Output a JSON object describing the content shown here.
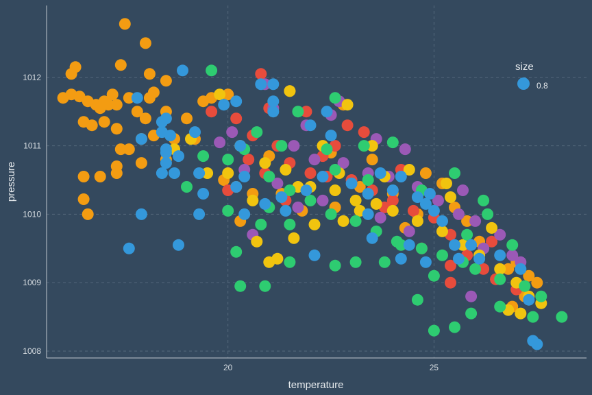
{
  "chart_data": {
    "type": "scatter",
    "title": "",
    "xlabel": "temperature",
    "ylabel": "pressure",
    "xlim": [
      15.6,
      28.7
    ],
    "ylim": [
      1007.9,
      1013.05
    ],
    "x_ticks": [
      20,
      25
    ],
    "x_tick_labels": [
      "20",
      "25"
    ],
    "y_ticks": [
      1008,
      1009,
      1010,
      1011,
      1012
    ],
    "y_tick_labels": [
      "1008",
      "1009",
      "1010",
      "1011",
      "1012"
    ],
    "grid": true,
    "legend": {
      "title": "size",
      "position": "top-right",
      "entries": [
        {
          "label": "0.8",
          "color": "#3498db"
        }
      ]
    },
    "colors": {
      "orange": "#f39c12",
      "red": "#e74c3c",
      "purple": "#9b59b6",
      "yellow": "#f1c40f",
      "green": "#2ecc71",
      "blue": "#3498db"
    },
    "point_size": 0.8,
    "series": [
      {
        "color": "orange",
        "points": [
          [
            17.5,
            1012.78
          ],
          [
            18.0,
            1012.5
          ],
          [
            16.3,
            1012.15
          ],
          [
            16.2,
            1012.05
          ],
          [
            17.4,
            1012.18
          ],
          [
            18.1,
            1012.05
          ],
          [
            18.2,
            1011.78
          ],
          [
            18.5,
            1011.95
          ],
          [
            16.0,
            1011.7
          ],
          [
            16.2,
            1011.75
          ],
          [
            16.4,
            1011.72
          ],
          [
            16.6,
            1011.65
          ],
          [
            16.8,
            1011.6
          ],
          [
            17.0,
            1011.65
          ],
          [
            17.2,
            1011.75
          ],
          [
            17.6,
            1011.7
          ],
          [
            18.1,
            1011.7
          ],
          [
            16.9,
            1011.55
          ],
          [
            17.1,
            1011.6
          ],
          [
            17.3,
            1011.6
          ],
          [
            17.8,
            1011.5
          ],
          [
            18.0,
            1011.4
          ],
          [
            16.5,
            1011.35
          ],
          [
            16.7,
            1011.3
          ],
          [
            17.0,
            1011.35
          ],
          [
            17.3,
            1011.25
          ],
          [
            17.9,
            1011.1
          ],
          [
            18.2,
            1011.15
          ],
          [
            19.0,
            1011.4
          ],
          [
            19.2,
            1011.1
          ],
          [
            17.6,
            1010.95
          ],
          [
            17.4,
            1010.95
          ],
          [
            18.5,
            1010.8
          ],
          [
            17.3,
            1010.7
          ],
          [
            17.9,
            1010.75
          ],
          [
            16.5,
            1010.55
          ],
          [
            16.9,
            1010.55
          ],
          [
            16.5,
            1010.22
          ],
          [
            16.6,
            1010.0
          ],
          [
            17.3,
            1010.6
          ],
          [
            18.5,
            1011.5
          ],
          [
            19.6,
            1011.7
          ],
          [
            20.0,
            1011.75
          ],
          [
            21.5,
            1011.8
          ],
          [
            19.4,
            1011.65
          ],
          [
            18.7,
            1011.1
          ],
          [
            20.2,
            1010.4
          ],
          [
            21.3,
            1010.3
          ],
          [
            22.5,
            1010.9
          ],
          [
            23.5,
            1010.8
          ],
          [
            24.0,
            1010.3
          ],
          [
            24.8,
            1010.6
          ],
          [
            25.5,
            1010.1
          ],
          [
            25.8,
            1009.9
          ],
          [
            26.2,
            1009.5
          ],
          [
            26.8,
            1009.2
          ],
          [
            27.3,
            1009.1
          ],
          [
            27.5,
            1009.0
          ],
          [
            26.5,
            1009.05
          ],
          [
            27.0,
            1009.3
          ],
          [
            27.2,
            1008.8
          ],
          [
            26.9,
            1008.65
          ],
          [
            22.8,
            1011.6
          ],
          [
            19.9,
            1010.5
          ],
          [
            20.6,
            1010.3
          ],
          [
            21.0,
            1010.85
          ],
          [
            21.8,
            1010.05
          ],
          [
            22.6,
            1010.1
          ],
          [
            23.2,
            1010.4
          ],
          [
            24.3,
            1009.8
          ],
          [
            25.2,
            1010.45
          ],
          [
            20.3,
            1009.9
          ],
          [
            24.6,
            1010.0
          ],
          [
            26.1,
            1009.6
          ]
        ]
      },
      {
        "color": "red",
        "points": [
          [
            20.8,
            1012.05
          ],
          [
            21.9,
            1011.5
          ],
          [
            20.2,
            1011.4
          ],
          [
            19.6,
            1011.5
          ],
          [
            20.6,
            1011.15
          ],
          [
            21.2,
            1011.0
          ],
          [
            21.5,
            1010.75
          ],
          [
            22.0,
            1010.6
          ],
          [
            22.4,
            1010.55
          ],
          [
            23.0,
            1010.5
          ],
          [
            23.5,
            1010.35
          ],
          [
            24.0,
            1010.2
          ],
          [
            24.5,
            1010.05
          ],
          [
            25.0,
            1009.95
          ],
          [
            25.4,
            1009.7
          ],
          [
            25.8,
            1009.4
          ],
          [
            26.2,
            1009.2
          ],
          [
            26.5,
            1009.05
          ],
          [
            27.0,
            1008.9
          ],
          [
            25.4,
            1009.25
          ],
          [
            25.4,
            1009.0
          ],
          [
            24.7,
            1009.5
          ],
          [
            21.4,
            1010.2
          ],
          [
            22.6,
            1011.0
          ],
          [
            20.5,
            1010.8
          ],
          [
            23.3,
            1011.2
          ],
          [
            22.9,
            1011.3
          ],
          [
            21.0,
            1011.55
          ],
          [
            20.0,
            1010.35
          ],
          [
            22.3,
            1010.85
          ],
          [
            24.2,
            1010.65
          ],
          [
            23.8,
            1010.1
          ],
          [
            20.9,
            1010.6
          ],
          [
            26.4,
            1009.6
          ]
        ]
      },
      {
        "color": "purple",
        "points": [
          [
            20.9,
            1011.9
          ],
          [
            22.5,
            1011.45
          ],
          [
            20.1,
            1011.2
          ],
          [
            21.1,
            1011.55
          ],
          [
            21.6,
            1011.0
          ],
          [
            22.1,
            1010.8
          ],
          [
            22.8,
            1010.75
          ],
          [
            23.4,
            1010.6
          ],
          [
            23.9,
            1010.55
          ],
          [
            24.6,
            1010.4
          ],
          [
            25.1,
            1010.2
          ],
          [
            25.6,
            1010.0
          ],
          [
            26.0,
            1009.9
          ],
          [
            26.6,
            1009.7
          ],
          [
            26.9,
            1009.4
          ],
          [
            27.1,
            1009.3
          ],
          [
            26.2,
            1009.5
          ],
          [
            25.9,
            1008.8
          ],
          [
            24.4,
            1009.75
          ],
          [
            23.7,
            1009.95
          ],
          [
            22.3,
            1010.2
          ],
          [
            21.2,
            1010.45
          ],
          [
            20.4,
            1010.65
          ],
          [
            20.6,
            1009.7
          ],
          [
            21.7,
            1010.1
          ],
          [
            24.3,
            1010.95
          ],
          [
            23.6,
            1011.1
          ],
          [
            22.7,
            1011.65
          ],
          [
            25.7,
            1010.35
          ],
          [
            19.8,
            1011.05
          ],
          [
            21.9,
            1011.3
          ]
        ]
      },
      {
        "color": "yellow",
        "points": [
          [
            19.8,
            1011.75
          ],
          [
            21.5,
            1011.8
          ],
          [
            22.9,
            1011.6
          ],
          [
            20.3,
            1011.0
          ],
          [
            20.9,
            1010.75
          ],
          [
            21.4,
            1010.65
          ],
          [
            22.0,
            1010.4
          ],
          [
            22.6,
            1010.35
          ],
          [
            23.1,
            1010.2
          ],
          [
            23.6,
            1010.15
          ],
          [
            24.0,
            1010.05
          ],
          [
            24.6,
            1009.9
          ],
          [
            25.2,
            1009.75
          ],
          [
            25.7,
            1009.55
          ],
          [
            26.1,
            1009.4
          ],
          [
            26.6,
            1009.2
          ],
          [
            27.0,
            1009.0
          ],
          [
            27.3,
            1008.8
          ],
          [
            26.8,
            1008.6
          ],
          [
            27.1,
            1008.55
          ],
          [
            27.6,
            1008.7
          ],
          [
            24.4,
            1010.65
          ],
          [
            25.3,
            1010.45
          ],
          [
            20.7,
            1009.6
          ],
          [
            21.0,
            1009.3
          ],
          [
            21.2,
            1009.35
          ],
          [
            21.6,
            1009.65
          ],
          [
            22.1,
            1009.85
          ],
          [
            22.8,
            1009.9
          ],
          [
            23.2,
            1010.05
          ],
          [
            23.8,
            1010.55
          ],
          [
            21.7,
            1010.4
          ],
          [
            20.6,
            1010.2
          ],
          [
            19.1,
            1011.1
          ],
          [
            18.7,
            1010.95
          ],
          [
            19.5,
            1010.6
          ],
          [
            20.0,
            1010.6
          ],
          [
            22.3,
            1011.0
          ],
          [
            25.4,
            1010.25
          ],
          [
            26.4,
            1009.8
          ],
          [
            22.7,
            1010.6
          ],
          [
            23.5,
            1011.0
          ]
        ]
      },
      {
        "color": "green",
        "points": [
          [
            19.6,
            1012.1
          ],
          [
            22.6,
            1011.7
          ],
          [
            21.7,
            1011.5
          ],
          [
            20.7,
            1011.2
          ],
          [
            20.0,
            1010.8
          ],
          [
            21.0,
            1010.55
          ],
          [
            21.5,
            1010.35
          ],
          [
            22.0,
            1010.2
          ],
          [
            22.5,
            1010.0
          ],
          [
            23.1,
            1009.9
          ],
          [
            23.6,
            1009.75
          ],
          [
            24.1,
            1009.6
          ],
          [
            24.7,
            1009.5
          ],
          [
            25.2,
            1009.4
          ],
          [
            25.7,
            1009.3
          ],
          [
            26.0,
            1009.2
          ],
          [
            26.6,
            1009.05
          ],
          [
            27.2,
            1008.95
          ],
          [
            27.6,
            1008.8
          ],
          [
            28.1,
            1008.5
          ],
          [
            27.4,
            1008.5
          ],
          [
            26.6,
            1008.65
          ],
          [
            25.9,
            1008.55
          ],
          [
            25.5,
            1008.35
          ],
          [
            25.0,
            1008.3
          ],
          [
            24.6,
            1008.75
          ],
          [
            20.3,
            1008.95
          ],
          [
            20.9,
            1008.95
          ],
          [
            21.5,
            1009.3
          ],
          [
            22.6,
            1009.25
          ],
          [
            23.1,
            1009.3
          ],
          [
            23.8,
            1009.3
          ],
          [
            24.2,
            1009.55
          ],
          [
            25.0,
            1009.1
          ],
          [
            25.8,
            1009.7
          ],
          [
            26.3,
            1010.0
          ],
          [
            26.9,
            1009.55
          ],
          [
            23.4,
            1010.5
          ],
          [
            24.0,
            1011.05
          ],
          [
            23.3,
            1011.0
          ],
          [
            22.6,
            1010.65
          ],
          [
            21.3,
            1011.0
          ],
          [
            20.4,
            1010.95
          ],
          [
            19.0,
            1010.4
          ],
          [
            19.4,
            1010.85
          ],
          [
            21.0,
            1010.1
          ],
          [
            21.5,
            1009.85
          ],
          [
            20.8,
            1009.85
          ],
          [
            20.2,
            1009.45
          ],
          [
            20.0,
            1010.05
          ],
          [
            25.5,
            1010.6
          ],
          [
            26.2,
            1010.2
          ],
          [
            22.4,
            1010.95
          ],
          [
            24.7,
            1010.35
          ]
        ]
      },
      {
        "color": "blue",
        "points": [
          [
            17.8,
            1011.7
          ],
          [
            18.9,
            1012.1
          ],
          [
            20.2,
            1011.65
          ],
          [
            19.9,
            1011.6
          ],
          [
            20.8,
            1011.9
          ],
          [
            21.1,
            1011.9
          ],
          [
            21.1,
            1011.65
          ],
          [
            21.1,
            1011.5
          ],
          [
            22.4,
            1011.5
          ],
          [
            22.0,
            1011.3
          ],
          [
            22.5,
            1011.15
          ],
          [
            19.2,
            1011.2
          ],
          [
            18.4,
            1011.2
          ],
          [
            18.6,
            1011.15
          ],
          [
            18.5,
            1010.95
          ],
          [
            18.5,
            1010.9
          ],
          [
            18.8,
            1010.85
          ],
          [
            18.7,
            1010.6
          ],
          [
            18.5,
            1010.75
          ],
          [
            18.4,
            1010.6
          ],
          [
            17.9,
            1011.1
          ],
          [
            18.4,
            1011.35
          ],
          [
            18.5,
            1011.4
          ],
          [
            19.4,
            1010.3
          ],
          [
            19.3,
            1010.0
          ],
          [
            20.4,
            1010.0
          ],
          [
            20.9,
            1010.15
          ],
          [
            20.2,
            1010.4
          ],
          [
            21.3,
            1010.25
          ],
          [
            21.4,
            1010.05
          ],
          [
            21.9,
            1010.35
          ],
          [
            22.3,
            1010.55
          ],
          [
            23.0,
            1010.45
          ],
          [
            23.4,
            1010.3
          ],
          [
            23.7,
            1010.6
          ],
          [
            24.2,
            1010.55
          ],
          [
            24.0,
            1010.35
          ],
          [
            24.6,
            1010.25
          ],
          [
            24.8,
            1010.15
          ],
          [
            25.0,
            1010.05
          ],
          [
            25.2,
            1009.9
          ],
          [
            25.5,
            1009.55
          ],
          [
            25.6,
            1009.35
          ],
          [
            25.9,
            1009.55
          ],
          [
            26.1,
            1009.35
          ],
          [
            26.6,
            1009.4
          ],
          [
            27.1,
            1009.2
          ],
          [
            27.3,
            1008.75
          ],
          [
            27.4,
            1008.15
          ],
          [
            27.5,
            1008.1
          ],
          [
            24.2,
            1009.35
          ],
          [
            24.4,
            1009.55
          ],
          [
            24.8,
            1009.3
          ],
          [
            23.5,
            1009.65
          ],
          [
            23.4,
            1010.0
          ],
          [
            22.1,
            1009.4
          ],
          [
            20.4,
            1010.55
          ],
          [
            17.9,
            1010.0
          ],
          [
            17.6,
            1009.5
          ],
          [
            18.8,
            1009.55
          ],
          [
            19.3,
            1010.6
          ],
          [
            20.3,
            1011.0
          ],
          [
            24.9,
            1010.3
          ]
        ]
      }
    ]
  }
}
